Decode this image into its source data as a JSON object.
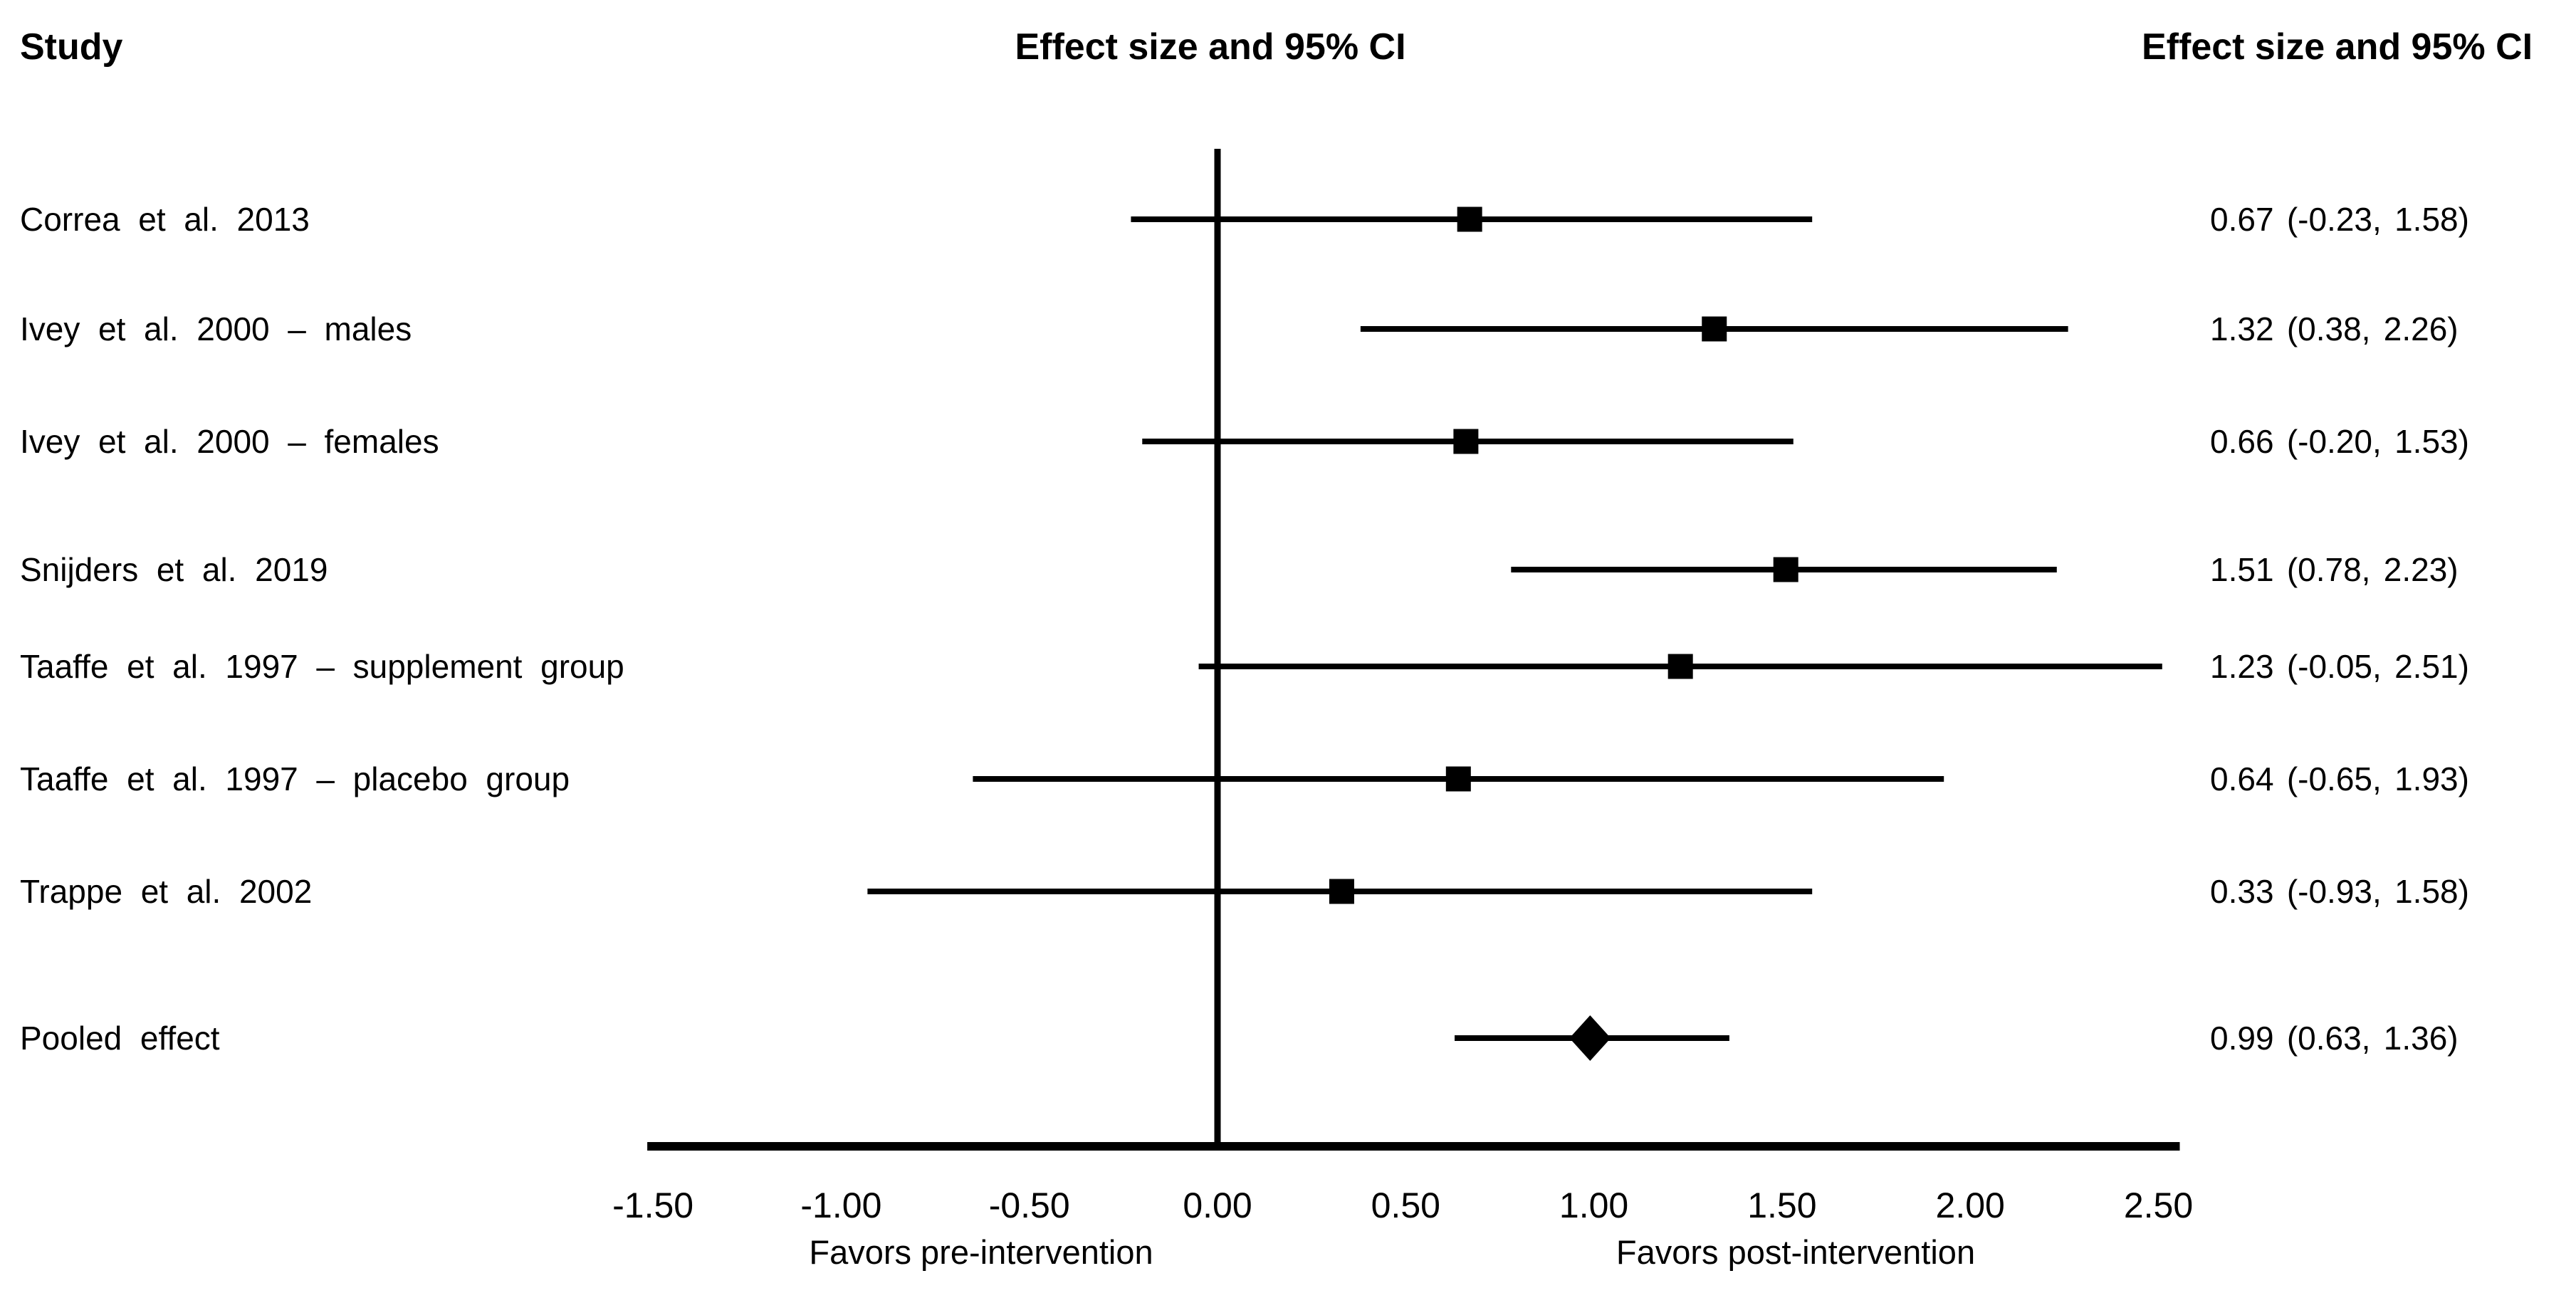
{
  "header": {
    "study": "Study",
    "plot": "Effect size and 95% CI",
    "values": "Effect size and 95% CI"
  },
  "colors": {
    "foreground": "#000000",
    "background": "#ffffff"
  },
  "chart_data": {
    "type": "forest",
    "title": "",
    "xlabel": "",
    "xaxis": {
      "min": -1.5,
      "max": 2.5,
      "tick_step": 0.5,
      "ticks": [
        "-1.50",
        "-1.00",
        "-0.50",
        "0.00",
        "0.50",
        "1.00",
        "1.50",
        "2.00",
        "2.50"
      ],
      "tick_values": [
        -1.5,
        -1.0,
        -0.5,
        0.0,
        0.5,
        1.0,
        1.5,
        2.0,
        2.5
      ],
      "zero_reference_line": 0.0,
      "grid": false
    },
    "annotations": {
      "favors_left": "Favors pre-intervention",
      "favors_right": "Favors post-intervention"
    },
    "studies": [
      {
        "label": "Correa et al. 2013",
        "estimate": 0.67,
        "ci_lower": -0.23,
        "ci_upper": 1.58,
        "display": "0.67 (-0.23, 1.58)",
        "marker": "square"
      },
      {
        "label": "Ivey et al. 2000 – males",
        "estimate": 1.32,
        "ci_lower": 0.38,
        "ci_upper": 2.26,
        "display": "1.32 (0.38, 2.26)",
        "marker": "square"
      },
      {
        "label": "Ivey et al. 2000 – females",
        "estimate": 0.66,
        "ci_lower": -0.2,
        "ci_upper": 1.53,
        "display": "0.66 (-0.20, 1.53)",
        "marker": "square"
      },
      {
        "label": "Snijders et al. 2019",
        "estimate": 1.51,
        "ci_lower": 0.78,
        "ci_upper": 2.23,
        "display": "1.51 (0.78, 2.23)",
        "marker": "square"
      },
      {
        "label": "Taaffe et al. 1997 – supplement group",
        "estimate": 1.23,
        "ci_lower": -0.05,
        "ci_upper": 2.51,
        "display": "1.23 (-0.05, 2.51)",
        "marker": "square"
      },
      {
        "label": "Taaffe et al. 1997 – placebo group",
        "estimate": 0.64,
        "ci_lower": -0.65,
        "ci_upper": 1.93,
        "display": "0.64 (-0.65, 1.93)",
        "marker": "square"
      },
      {
        "label": "Trappe et al. 2002",
        "estimate": 0.33,
        "ci_lower": -0.93,
        "ci_upper": 1.58,
        "display": "0.33 (-0.93, 1.58)",
        "marker": "square"
      },
      {
        "label": "Pooled effect",
        "estimate": 0.99,
        "ci_lower": 0.63,
        "ci_upper": 1.36,
        "display": "0.99 (0.63, 1.36)",
        "marker": "diamond"
      }
    ]
  }
}
